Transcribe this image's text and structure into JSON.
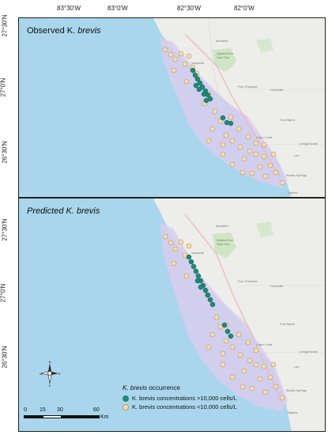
{
  "axes": {
    "top_ticks": [
      "83°30'W",
      "83°0'W",
      "82°30'W",
      "82°0'W"
    ],
    "left_ticks_top": [
      "27°30'N",
      "27°0'N",
      "26°30'N"
    ],
    "left_ticks_bottom": [
      "27°30'N",
      "27°0'N",
      "26°30'N"
    ]
  },
  "panels": [
    {
      "title_prefix": "Observed K. ",
      "title_italic": "brevis",
      "title_prefix_italic": false
    },
    {
      "title_prefix": "Predicted K. ",
      "title_italic": "brevis",
      "title_prefix_italic": true
    }
  ],
  "places": [
    "Sarasota",
    "Myakka River State Park",
    "Port Charlotte",
    "Charlotte",
    "Fort Myers",
    "Cape Coral",
    "Lehigh Acres",
    "Lee",
    "Bonita Springs",
    "Naples",
    "Manatee"
  ],
  "legend": {
    "title_italic": "K. brevis",
    "title_rest": " occurrence",
    "items": [
      {
        "label": "K. brevis concentrations >10,000 cells/L",
        "color": "#1e8a78"
      },
      {
        "label": "K. brevis concentrations <10,000 cells/L",
        "color": "#f6dcae"
      }
    ]
  },
  "scale": {
    "ticks": [
      "0",
      "15",
      "30",
      "60"
    ],
    "unit": "Km"
  },
  "compass": {
    "n": "N",
    "s": "S",
    "e": "E",
    "w": "W"
  },
  "colors": {
    "water": "#a9d6ec",
    "land": "#ededea",
    "study_area": "#d9ccee",
    "high": "#1e8a78",
    "low": "#f6dcae"
  }
}
